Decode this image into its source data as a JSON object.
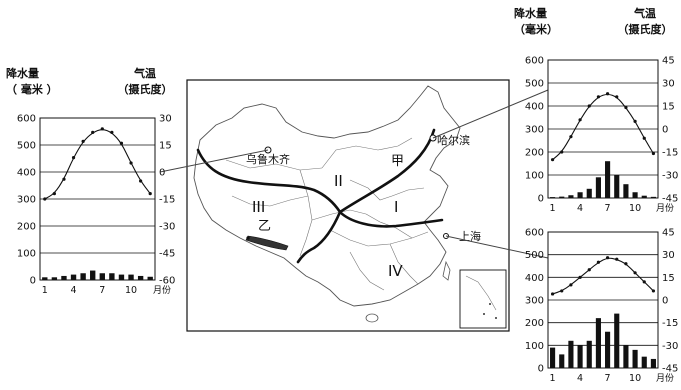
{
  "map": {
    "labels": {
      "urumqi": "乌鲁木齐",
      "harbin": "哈尔滨",
      "shanghai": "上海",
      "jia": "甲",
      "yi": "乙",
      "region_1": "I",
      "region_2": "II",
      "region_3": "III",
      "region_4": "IV"
    }
  },
  "chart_data": [
    {
      "type": "bar+line",
      "location_ref": "乌鲁木齐",
      "left_axis_title": [
        "降水量",
        "（ 毫米 ）"
      ],
      "right_axis_title": [
        "气温",
        "（摄氏度）"
      ],
      "x_ticks": [
        "1",
        "4",
        "7",
        "10",
        "月份"
      ],
      "precip_ticks": [
        "600",
        "500",
        "400",
        "300",
        "200",
        "100",
        "0"
      ],
      "temp_ticks": [
        "30",
        "15",
        "0",
        "-15",
        "-30",
        "-45",
        "-60"
      ],
      "precip_ylim": [
        0,
        600
      ],
      "temp_ylim": [
        -60,
        30
      ],
      "months": [
        1,
        2,
        3,
        4,
        5,
        6,
        7,
        8,
        9,
        10,
        11,
        12
      ],
      "precipitation": [
        10,
        10,
        15,
        20,
        25,
        35,
        25,
        25,
        20,
        20,
        15,
        12
      ],
      "temperature": [
        -15,
        -12,
        -4,
        8,
        17,
        22,
        24,
        22,
        16,
        5,
        -5,
        -12
      ]
    },
    {
      "type": "bar+line",
      "location_ref": "哈尔滨",
      "left_axis_title": [
        "降水量",
        "（毫米）"
      ],
      "right_axis_title": [
        "气温",
        "（摄氏度）"
      ],
      "x_ticks": [
        "1",
        "4",
        "7",
        "10",
        "月份"
      ],
      "precip_ticks": [
        "600",
        "500",
        "400",
        "300",
        "200",
        "100",
        "0"
      ],
      "temp_ticks": [
        "45",
        "30",
        "15",
        "0",
        "-15",
        "-30",
        "-45"
      ],
      "precip_ylim": [
        0,
        600
      ],
      "temp_ylim": [
        -45,
        45
      ],
      "months": [
        1,
        2,
        3,
        4,
        5,
        6,
        7,
        8,
        9,
        10,
        11,
        12
      ],
      "precipitation": [
        4,
        6,
        12,
        25,
        40,
        90,
        160,
        100,
        60,
        25,
        10,
        5
      ],
      "temperature": [
        -20,
        -15,
        -5,
        6,
        15,
        21,
        23,
        21,
        14,
        5,
        -6,
        -16
      ]
    },
    {
      "type": "bar+line",
      "location_ref": "上海",
      "left_axis_title": [],
      "right_axis_title": [],
      "x_ticks": [
        "1",
        "4",
        "7",
        "10",
        "月份"
      ],
      "precip_ticks": [
        "600",
        "500",
        "400",
        "300",
        "200",
        "100",
        "0"
      ],
      "temp_ticks": [
        "45",
        "30",
        "15",
        "0",
        "-15",
        "-30",
        "-45"
      ],
      "precip_ylim": [
        0,
        600
      ],
      "temp_ylim": [
        -45,
        45
      ],
      "months": [
        1,
        2,
        3,
        4,
        5,
        6,
        7,
        8,
        9,
        10,
        11,
        12
      ],
      "precipitation": [
        90,
        60,
        120,
        100,
        120,
        220,
        160,
        240,
        100,
        80,
        50,
        40
      ],
      "temperature": [
        4,
        6,
        10,
        15,
        20,
        25,
        28,
        27,
        24,
        18,
        12,
        6
      ]
    }
  ]
}
